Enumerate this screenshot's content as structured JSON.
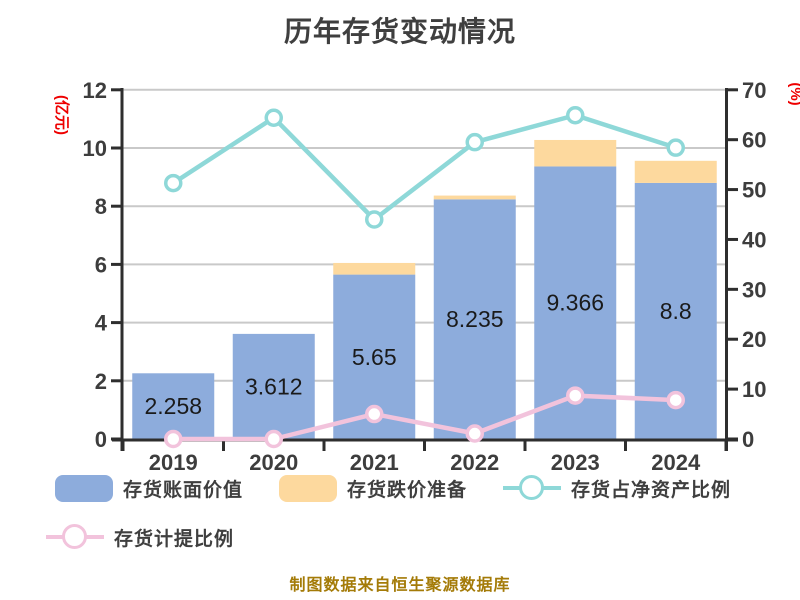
{
  "title": "历年存货变动情况",
  "caption": "制图数据来自恒生聚源数据库",
  "colors": {
    "title": "#3f3f3f",
    "axis_line": "#2e2e2e",
    "tick_label": "#3d3d3d",
    "grid": "#c9c9c9",
    "bar_blue": "#8dacdc",
    "bar_orange": "#fdd99e",
    "line_teal": "#8ed8d8",
    "line_pink": "#f2c3dc",
    "axis_name_red": "#ee0000",
    "value_label": "#1a1a1a",
    "caption_gold": "#a47b08"
  },
  "chart_data": {
    "type": "bar",
    "subtype": "stacked-bars-with-overlay-lines",
    "title": "历年存货变动情况",
    "categories": [
      "2019",
      "2020",
      "2021",
      "2022",
      "2023",
      "2024"
    ],
    "series": [
      {
        "name": "存货账面价值",
        "slug": "inventory-book-value",
        "type": "bar",
        "axis": "left",
        "color": "#8dacdc",
        "values": [
          2.258,
          3.612,
          5.65,
          8.235,
          9.366,
          8.8
        ],
        "value_labels": [
          "2.258",
          "3.612",
          "5.65",
          "8.235",
          "9.366",
          "8.8"
        ]
      },
      {
        "name": "存货跌价准备",
        "slug": "inventory-price-provision",
        "type": "bar",
        "stacked_on": "存货账面价值",
        "axis": "left",
        "color": "#fdd99e",
        "values": [
          0,
          0,
          0.4,
          0.13,
          0.91,
          0.76
        ]
      },
      {
        "name": "存货占净资产比例",
        "slug": "inventory-to-net-assets-ratio",
        "type": "line",
        "axis": "right",
        "color": "#8ed8d8",
        "values": [
          51.3,
          64.4,
          44.0,
          59.5,
          64.9,
          58.4
        ]
      },
      {
        "name": "存货计提比例",
        "slug": "inventory-provision-ratio",
        "type": "line",
        "axis": "right",
        "color": "#f2c3dc",
        "values": [
          0,
          0,
          5.0,
          1.1,
          8.7,
          7.8
        ]
      }
    ],
    "left_axis": {
      "label": "(亿元)",
      "min": 0,
      "max": 12,
      "step": 2,
      "ticks": [
        "0",
        "2",
        "4",
        "6",
        "8",
        "10",
        "12"
      ]
    },
    "right_axis": {
      "label": "(%)",
      "min": 0,
      "max": 70,
      "step": 10,
      "ticks": [
        "0",
        "10",
        "20",
        "30",
        "40",
        "50",
        "60",
        "70"
      ]
    },
    "grid": true,
    "legend_position": "bottom"
  },
  "legend": {
    "rows": [
      [
        0,
        1,
        2
      ],
      [
        3
      ]
    ]
  }
}
